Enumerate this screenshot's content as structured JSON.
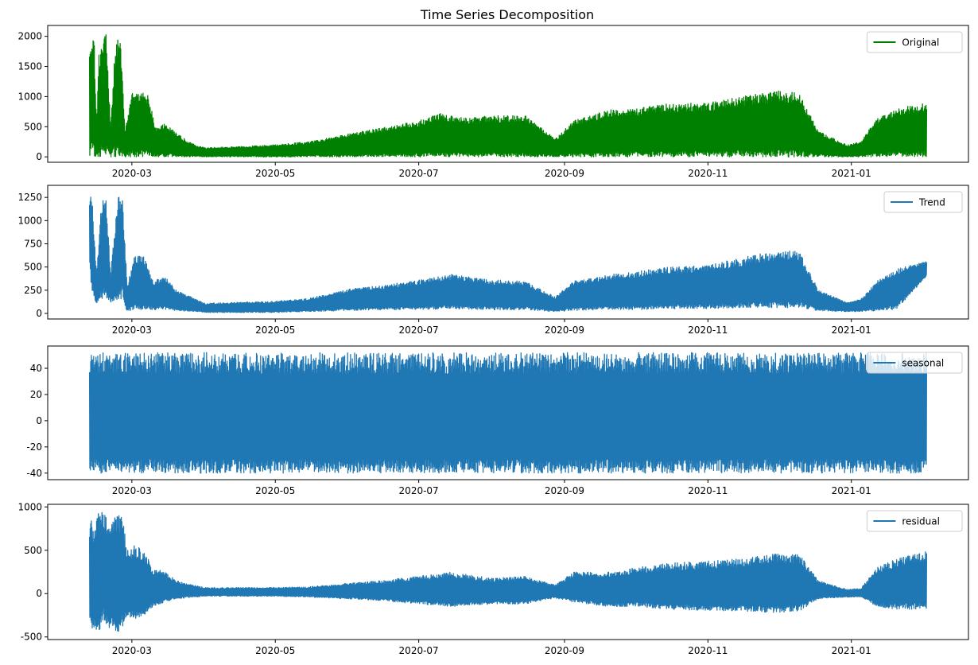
{
  "figure": {
    "title": "Time Series Decomposition"
  },
  "chart_data": [
    {
      "type": "line",
      "title": "Time Series Decomposition",
      "xlabel": "",
      "ylabel": "",
      "x_range": [
        "2020-02-12",
        "2021-02-02"
      ],
      "x_ticks": [
        "2020-03",
        "2020-05",
        "2020-07",
        "2020-09",
        "2020-11",
        "2021-01"
      ],
      "ylim": [
        -90,
        2180
      ],
      "y_ticks": [
        0,
        500,
        1000,
        1500,
        2000
      ],
      "grid": false,
      "legend": "top-right",
      "series": [
        {
          "name": "Original",
          "color": "#008000",
          "envelope": [
            [
              "2020-02-12",
              1950,
              0
            ],
            [
              "2020-02-13",
              2100,
              0
            ],
            [
              "2020-02-14",
              1900,
              0
            ],
            [
              "2020-02-15",
              500,
              0
            ],
            [
              "2020-02-16",
              1700,
              0
            ],
            [
              "2020-02-18",
              1950,
              0
            ],
            [
              "2020-02-19",
              2050,
              0
            ],
            [
              "2020-02-21",
              500,
              0
            ],
            [
              "2020-02-23",
              1900,
              0
            ],
            [
              "2020-02-25",
              2110,
              0
            ],
            [
              "2020-02-27",
              450,
              0
            ],
            [
              "2020-03-01",
              1050,
              0
            ],
            [
              "2020-03-04",
              1060,
              0
            ],
            [
              "2020-03-08",
              1050,
              0
            ],
            [
              "2020-03-11",
              480,
              0
            ],
            [
              "2020-03-15",
              550,
              0
            ],
            [
              "2020-03-20",
              400,
              0
            ],
            [
              "2020-03-25",
              250,
              0
            ],
            [
              "2020-04-01",
              150,
              0
            ],
            [
              "2020-04-15",
              170,
              0
            ],
            [
              "2020-05-01",
              200,
              0
            ],
            [
              "2020-05-15",
              250,
              0
            ],
            [
              "2020-06-01",
              380,
              0
            ],
            [
              "2020-06-15",
              480,
              0
            ],
            [
              "2020-07-01",
              600,
              0
            ],
            [
              "2020-07-10",
              720,
              0
            ],
            [
              "2020-07-20",
              650,
              0
            ],
            [
              "2020-08-01",
              680,
              0
            ],
            [
              "2020-08-15",
              700,
              0
            ],
            [
              "2020-08-28",
              300,
              0
            ],
            [
              "2020-09-05",
              600,
              0
            ],
            [
              "2020-09-20",
              780,
              0
            ],
            [
              "2020-10-01",
              800,
              0
            ],
            [
              "2020-10-15",
              880,
              0
            ],
            [
              "2020-11-01",
              900,
              0
            ],
            [
              "2020-11-15",
              1000,
              0
            ],
            [
              "2020-12-01",
              1100,
              0
            ],
            [
              "2020-12-10",
              1050,
              0
            ],
            [
              "2020-12-18",
              430,
              0
            ],
            [
              "2020-12-30",
              200,
              0
            ],
            [
              "2021-01-05",
              250,
              0
            ],
            [
              "2021-01-12",
              650,
              0
            ],
            [
              "2021-01-20",
              800,
              0
            ],
            [
              "2021-02-02",
              900,
              0
            ]
          ]
        }
      ]
    },
    {
      "type": "line",
      "title": "",
      "xlabel": "",
      "ylabel": "",
      "x_range": [
        "2020-02-12",
        "2021-02-02"
      ],
      "x_ticks": [
        "2020-03",
        "2020-05",
        "2020-07",
        "2020-09",
        "2020-11",
        "2021-01"
      ],
      "ylim": [
        -60,
        1380
      ],
      "y_ticks": [
        0,
        250,
        500,
        750,
        1000,
        1250
      ],
      "grid": false,
      "legend": "top-right",
      "series": [
        {
          "name": "Trend",
          "color": "#1f77b4",
          "envelope": [
            [
              "2020-02-12",
              1200,
              500
            ],
            [
              "2020-02-13",
              1320,
              200
            ],
            [
              "2020-02-15",
              420,
              100
            ],
            [
              "2020-02-17",
              1200,
              150
            ],
            [
              "2020-02-19",
              1280,
              150
            ],
            [
              "2020-02-21",
              420,
              120
            ],
            [
              "2020-02-24",
              1290,
              150
            ],
            [
              "2020-02-26",
              1300,
              160
            ],
            [
              "2020-02-28",
              300,
              20
            ],
            [
              "2020-03-02",
              620,
              30
            ],
            [
              "2020-03-06",
              620,
              30
            ],
            [
              "2020-03-10",
              350,
              40
            ],
            [
              "2020-03-15",
              400,
              40
            ],
            [
              "2020-03-20",
              250,
              30
            ],
            [
              "2020-04-01",
              110,
              10
            ],
            [
              "2020-04-15",
              120,
              10
            ],
            [
              "2020-05-01",
              130,
              10
            ],
            [
              "2020-05-15",
              160,
              20
            ],
            [
              "2020-06-01",
              260,
              30
            ],
            [
              "2020-06-15",
              300,
              40
            ],
            [
              "2020-07-01",
              360,
              40
            ],
            [
              "2020-07-15",
              420,
              50
            ],
            [
              "2020-08-01",
              360,
              40
            ],
            [
              "2020-08-15",
              350,
              40
            ],
            [
              "2020-08-28",
              180,
              20
            ],
            [
              "2020-09-05",
              350,
              30
            ],
            [
              "2020-09-20",
              420,
              40
            ],
            [
              "2020-10-01",
              450,
              40
            ],
            [
              "2020-10-15",
              500,
              50
            ],
            [
              "2020-11-01",
              520,
              50
            ],
            [
              "2020-11-15",
              600,
              60
            ],
            [
              "2020-12-01",
              680,
              60
            ],
            [
              "2020-12-10",
              670,
              60
            ],
            [
              "2020-12-18",
              250,
              30
            ],
            [
              "2020-12-30",
              120,
              20
            ],
            [
              "2021-01-05",
              150,
              20
            ],
            [
              "2021-01-12",
              350,
              30
            ],
            [
              "2021-01-20",
              480,
              40
            ],
            [
              "2021-02-02",
              570,
              400
            ]
          ]
        }
      ]
    },
    {
      "type": "line",
      "title": "",
      "xlabel": "",
      "ylabel": "",
      "x_range": [
        "2020-02-12",
        "2021-02-02"
      ],
      "x_ticks": [
        "2020-03",
        "2020-05",
        "2020-07",
        "2020-09",
        "2020-11",
        "2021-01"
      ],
      "ylim": [
        -45,
        57
      ],
      "y_ticks": [
        -40,
        -20,
        0,
        20,
        40
      ],
      "grid": false,
      "legend": "top-right",
      "series": [
        {
          "name": "seasonal",
          "color": "#1f77b4",
          "envelope": [
            [
              "2020-02-12",
              52,
              -40
            ],
            [
              "2021-02-02",
              52,
              -40
            ]
          ]
        }
      ]
    },
    {
      "type": "line",
      "title": "",
      "xlabel": "",
      "ylabel": "",
      "x_range": [
        "2020-02-12",
        "2021-02-02"
      ],
      "x_ticks": [
        "2020-03",
        "2020-05",
        "2020-07",
        "2020-09",
        "2020-11",
        "2021-01"
      ],
      "ylim": [
        -530,
        1030
      ],
      "y_ticks": [
        -500,
        0,
        500,
        1000
      ],
      "grid": false,
      "legend": "top-right",
      "series": [
        {
          "name": "residual",
          "color": "#1f77b4",
          "envelope": [
            [
              "2020-02-12",
              880,
              -400
            ],
            [
              "2020-02-14",
              800,
              -420
            ],
            [
              "2020-02-16",
              950,
              -450
            ],
            [
              "2020-02-18",
              980,
              -300
            ],
            [
              "2020-02-20",
              800,
              -400
            ],
            [
              "2020-02-22",
              900,
              -420
            ],
            [
              "2020-02-24",
              920,
              -450
            ],
            [
              "2020-02-26",
              900,
              -400
            ],
            [
              "2020-02-28",
              500,
              -250
            ],
            [
              "2020-03-02",
              560,
              -300
            ],
            [
              "2020-03-06",
              500,
              -250
            ],
            [
              "2020-03-10",
              300,
              -150
            ],
            [
              "2020-03-15",
              250,
              -100
            ],
            [
              "2020-03-20",
              150,
              -60
            ],
            [
              "2020-04-01",
              70,
              -30
            ],
            [
              "2020-05-01",
              70,
              -30
            ],
            [
              "2020-05-15",
              80,
              -40
            ],
            [
              "2020-06-01",
              120,
              -60
            ],
            [
              "2020-06-15",
              150,
              -80
            ],
            [
              "2020-07-01",
              200,
              -120
            ],
            [
              "2020-07-15",
              250,
              -150
            ],
            [
              "2020-08-01",
              180,
              -120
            ],
            [
              "2020-08-15",
              200,
              -120
            ],
            [
              "2020-08-28",
              100,
              -50
            ],
            [
              "2020-09-05",
              250,
              -100
            ],
            [
              "2020-09-20",
              250,
              -150
            ],
            [
              "2020-10-01",
              300,
              -150
            ],
            [
              "2020-10-15",
              350,
              -180
            ],
            [
              "2020-11-01",
              380,
              -200
            ],
            [
              "2020-11-15",
              400,
              -200
            ],
            [
              "2020-12-01",
              470,
              -220
            ],
            [
              "2020-12-10",
              450,
              -200
            ],
            [
              "2020-12-18",
              150,
              -60
            ],
            [
              "2020-12-30",
              50,
              -40
            ],
            [
              "2021-01-05",
              60,
              -40
            ],
            [
              "2021-01-12",
              300,
              -150
            ],
            [
              "2021-01-20",
              400,
              -180
            ],
            [
              "2021-02-02",
              490,
              -180
            ]
          ]
        }
      ]
    }
  ]
}
